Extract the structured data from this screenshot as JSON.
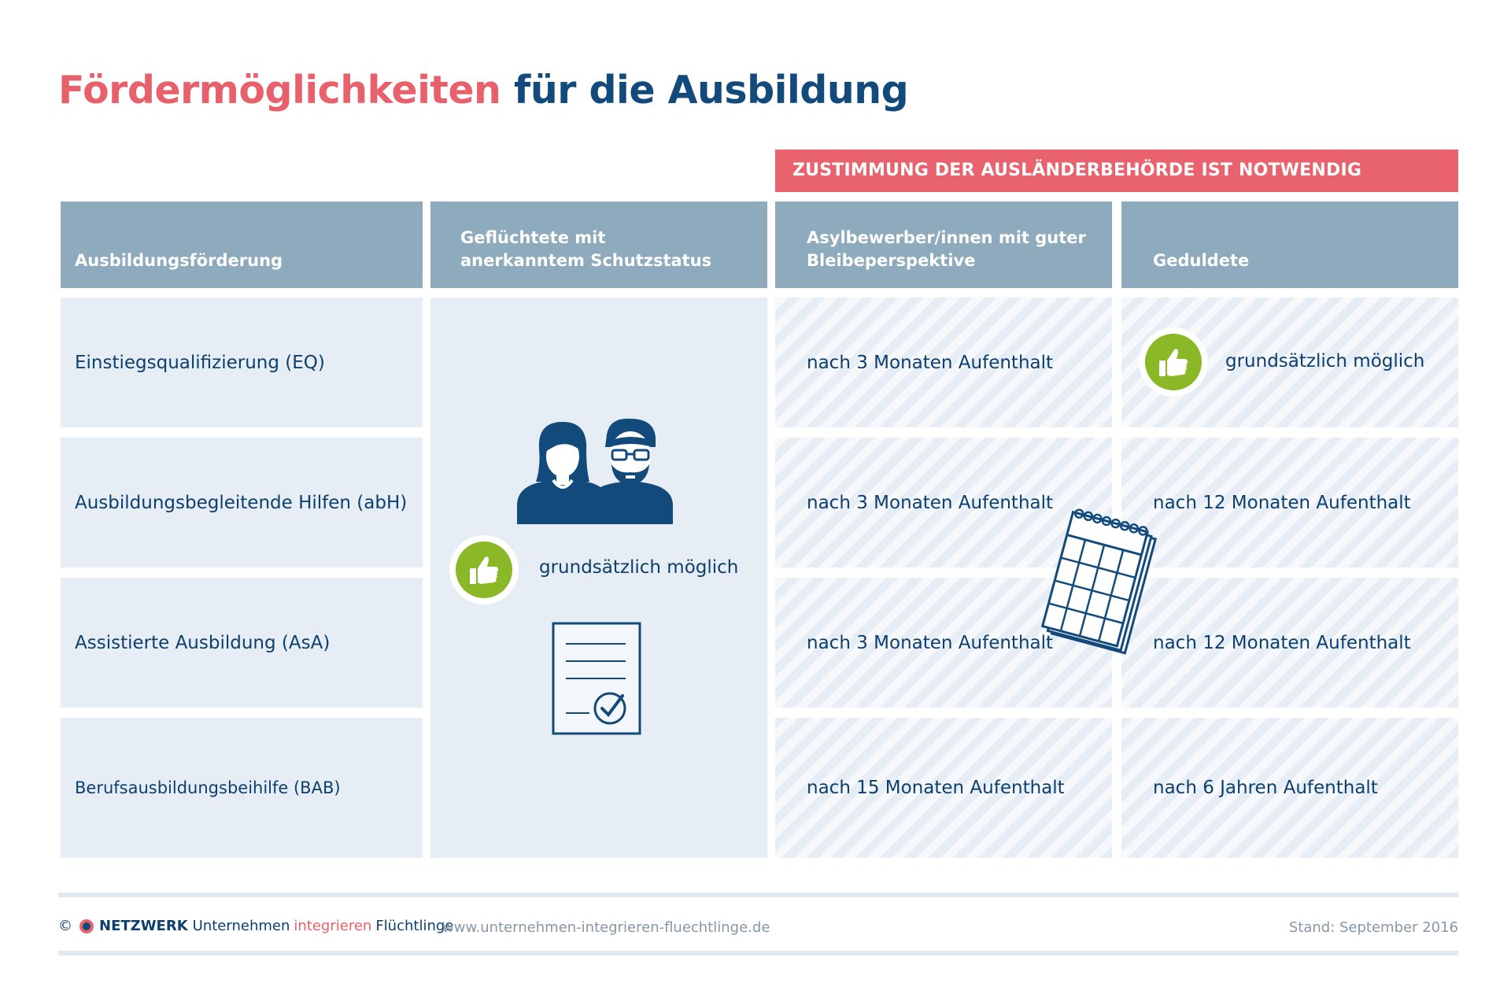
{
  "title": {
    "part_red": "Fördermöglichkeiten",
    "part_blue": "für die Ausbildung"
  },
  "banner": "ZUSTIMMUNG DER AUSLÄNDERBEHÖRDE IST NOTWENDIG",
  "headers": {
    "col1": [
      "Ausbildungsförderung"
    ],
    "col2": [
      "Geflüchtete mit",
      "anerkanntem Schutzstatus"
    ],
    "col3": [
      "Asylbewerber/innen mit guter",
      "Bleibeperspektive"
    ],
    "col4": [
      "Geduldete"
    ]
  },
  "rows": [
    {
      "label": "Einstiegsqualifizierung (EQ)",
      "asyl": "nach 3 Monaten Aufenthalt",
      "geduldete": "grundsätzlich möglich"
    },
    {
      "label": "Ausbildungsbegleitende Hilfen (abH)",
      "asyl": "nach 3 Monaten Aufenthalt",
      "geduldete": "nach 12 Monaten Aufenthalt"
    },
    {
      "label": "Assistierte Ausbildung (AsA)",
      "asyl": "nach 3 Monaten Aufenthalt",
      "geduldete": "nach 12 Monaten Aufenthalt"
    },
    {
      "label": "Berufsausbildungsbeihilfe (BAB)",
      "asyl": "nach 15  Monaten Aufenthalt",
      "geduldete": "nach 6 Jahren Aufenthalt"
    }
  ],
  "refugees_note": "grundsätzlich möglich",
  "icons": [
    "people-icon",
    "thumbs-up-icon",
    "document-check-icon",
    "calendar-icon"
  ],
  "colors": {
    "red": "#e8636d",
    "navy": "#0d3f6e",
    "header": "#8eaabd",
    "cell": "#e7edf4",
    "green": "#8ab827"
  },
  "footer": {
    "copyright": "©",
    "brand_bold": "NETZWERK",
    "brand_1": "Unternehmen",
    "brand_red": "integrieren",
    "brand_2": "Flüchtlinge",
    "url": "www.unternehmen-integrieren-fluechtlinge.de",
    "date": "Stand: September 2016"
  }
}
